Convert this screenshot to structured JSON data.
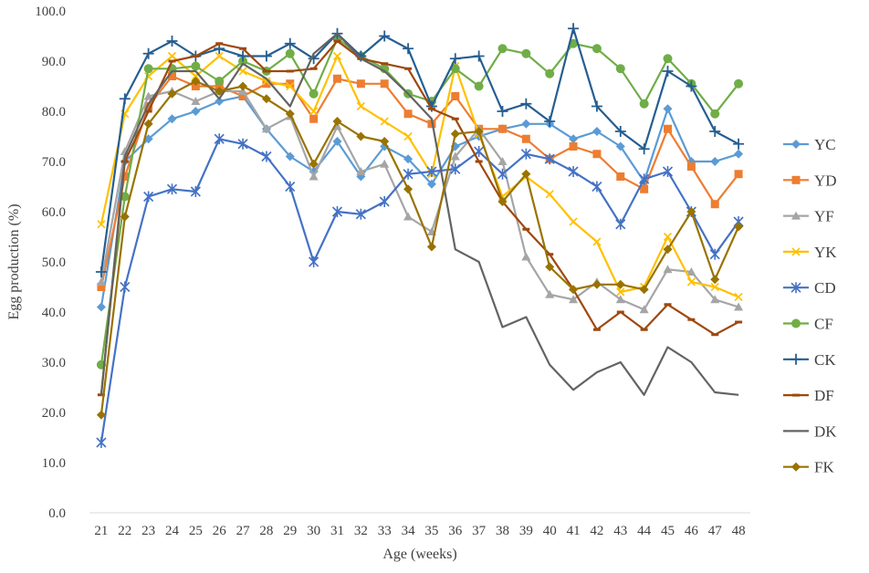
{
  "chart_data": {
    "type": "line",
    "title": "",
    "xlabel": "Age (weeks)",
    "ylabel": "Egg production (%)",
    "ylim": [
      0,
      100
    ],
    "yticks": [
      "0.0",
      "10.0",
      "20.0",
      "30.0",
      "40.0",
      "50.0",
      "60.0",
      "70.0",
      "80.0",
      "90.0",
      "100.0"
    ],
    "grid": false,
    "legend_position": "right",
    "categories": [
      "21",
      "22",
      "23",
      "24",
      "25",
      "26",
      "27",
      "28",
      "29",
      "30",
      "31",
      "32",
      "33",
      "34",
      "35",
      "36",
      "37",
      "38",
      "39",
      "40",
      "41",
      "42",
      "43",
      "44",
      "45",
      "46",
      "47",
      "48"
    ],
    "series": [
      {
        "name": "YC",
        "color": "#5B9BD5",
        "marker": "diamond",
        "values": [
          41,
          70,
          74.5,
          78.5,
          80,
          82,
          83,
          76.5,
          71,
          68,
          74,
          67,
          73,
          70.5,
          65.5,
          73,
          75,
          76.5,
          77.5,
          77.5,
          74.5,
          76,
          73,
          66,
          80.5,
          70,
          70,
          71.5
        ]
      },
      {
        "name": "YD",
        "color": "#ED7D31",
        "marker": "square",
        "values": [
          45,
          67,
          81,
          87,
          85,
          85,
          83,
          85.5,
          85.5,
          78.5,
          86.5,
          85.5,
          85.5,
          79.5,
          77.5,
          83,
          76.5,
          76.5,
          74.5,
          70.5,
          73,
          71.5,
          67,
          64.5,
          76.5,
          69,
          61.5,
          67.5
        ]
      },
      {
        "name": "YF",
        "color": "#A5A5A5",
        "marker": "triangle",
        "values": [
          46,
          72,
          83,
          84,
          82,
          84,
          84,
          76.5,
          79,
          67,
          77,
          68,
          69.5,
          59,
          56,
          71,
          76.5,
          70,
          51,
          43.5,
          42.5,
          46,
          42.5,
          40.5,
          48.5,
          48,
          42.5,
          41
        ]
      },
      {
        "name": "YK",
        "color": "#FFC000",
        "marker": "x",
        "values": [
          57.5,
          79.5,
          87,
          91,
          87,
          91,
          88,
          86,
          85,
          80,
          91,
          81,
          78,
          75,
          67.5,
          89,
          75.5,
          63,
          67,
          63.5,
          58,
          54,
          44,
          45,
          55,
          46,
          45,
          43
        ]
      },
      {
        "name": "CD",
        "color": "#4472C4",
        "marker": "star",
        "values": [
          14,
          45,
          63,
          64.5,
          64,
          74.5,
          73.5,
          71,
          65,
          50,
          60,
          59.5,
          62,
          67.5,
          68,
          68.5,
          72,
          67.5,
          71.5,
          70.5,
          68,
          65,
          57.5,
          66.5,
          68,
          60,
          51.5,
          58
        ]
      },
      {
        "name": "CF",
        "color": "#70AD47",
        "marker": "circle",
        "values": [
          29.5,
          63,
          88.5,
          88.5,
          89,
          86,
          90,
          88,
          91.5,
          83.5,
          94.5,
          91,
          88.5,
          83.5,
          82,
          88.5,
          85,
          92.5,
          91.5,
          87.5,
          93.5,
          92.5,
          88.5,
          81.5,
          90.5,
          85.5,
          79.5,
          85.5
        ]
      },
      {
        "name": "CK",
        "color": "#255E91",
        "marker": "plus",
        "values": [
          48,
          82.5,
          91.5,
          94,
          91,
          92.5,
          91,
          91,
          93.5,
          90.5,
          95.5,
          91,
          95,
          92.5,
          81,
          90.5,
          91,
          80,
          81.5,
          78,
          96.5,
          81,
          76,
          72.5,
          88,
          85,
          76,
          73.5
        ]
      },
      {
        "name": "DF",
        "color": "#9E480E",
        "marker": "dash",
        "values": [
          23.5,
          70,
          80,
          90,
          91,
          93.5,
          92.5,
          88,
          88,
          88.5,
          94,
          90.5,
          89.5,
          88.5,
          80.5,
          78.5,
          70,
          62,
          56.5,
          51.5,
          44.5,
          36.5,
          40,
          36.5,
          41.5,
          38.5,
          35.5,
          38
        ]
      },
      {
        "name": "DK",
        "color": "#636363",
        "marker": "none",
        "values": [
          23.5,
          71,
          81.5,
          88,
          88,
          82.5,
          89.5,
          86.5,
          81,
          91.5,
          95.5,
          90.5,
          88,
          83.5,
          78.5,
          52.5,
          50,
          37,
          39,
          29.5,
          24.5,
          28,
          30,
          23.5,
          33,
          30,
          24,
          23.5
        ]
      },
      {
        "name": "FK",
        "color": "#997300",
        "marker": "diamond",
        "values": [
          19.5,
          59,
          77.5,
          83.5,
          86,
          84,
          85,
          82.5,
          79.5,
          69.5,
          78,
          75,
          74,
          64.5,
          53,
          75.5,
          76,
          62,
          67.5,
          49,
          44.5,
          45.5,
          45.5,
          44.5,
          52.5,
          60,
          46.5,
          57
        ]
      }
    ]
  }
}
